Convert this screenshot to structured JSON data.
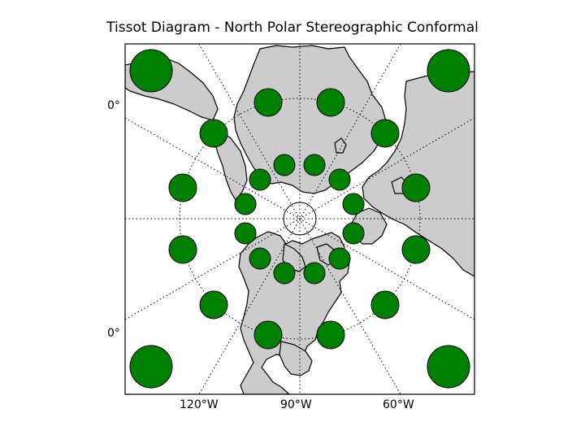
{
  "title": "Tissot Diagram - North Polar Stereographic Conformal",
  "map": {
    "projection": "North Polar Stereographic",
    "land_color": "#cccccc",
    "ocean_color": "#ffffff",
    "coastline_color": "#000000",
    "indicatrix_color": "#008000",
    "graticule_style": "dotted",
    "meridian_labels": [
      "120°W",
      "90°W",
      "60°W"
    ],
    "parallel_labels": [
      "0°",
      "0°"
    ]
  }
}
